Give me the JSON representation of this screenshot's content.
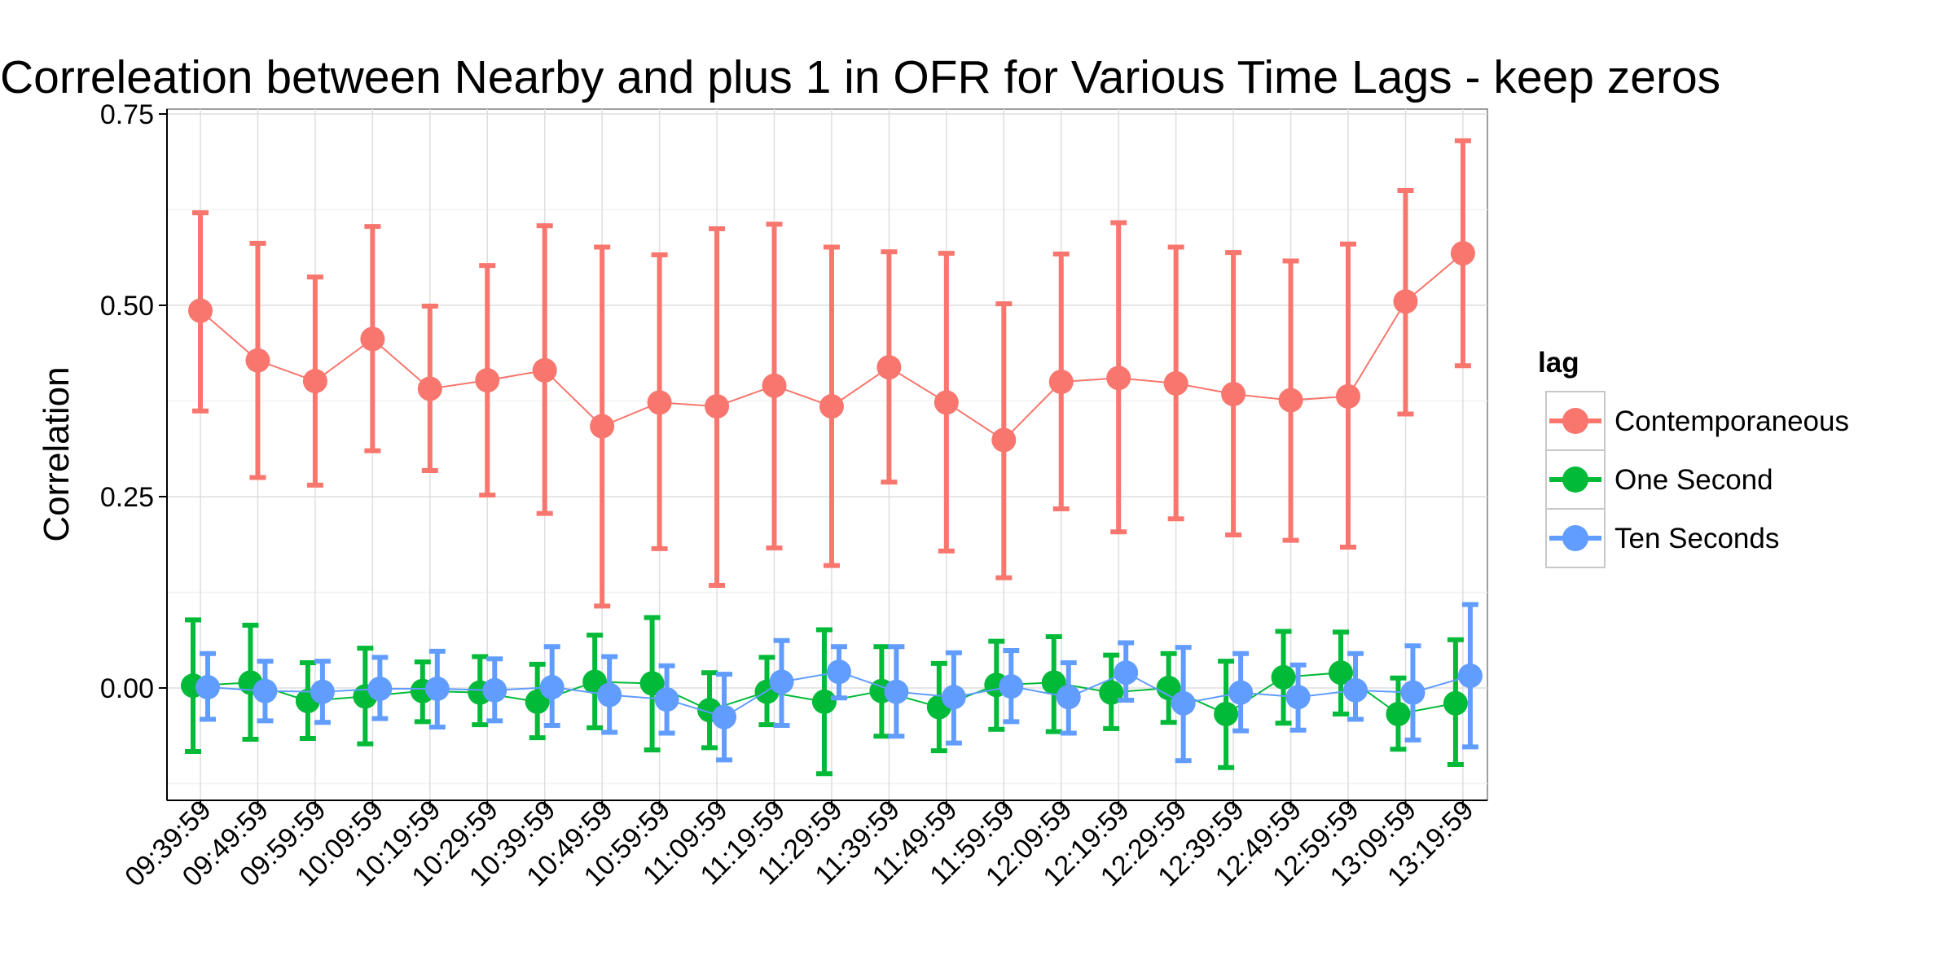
{
  "chart_data": {
    "type": "line",
    "title": "Correleation between Nearby and plus 1 in OFR for Various Time Lags - keep zeros",
    "xlabel": "",
    "ylabel": "Correlation",
    "categories": [
      "09:39:59",
      "09:49:59",
      "09:59:59",
      "10:09:59",
      "10:19:59",
      "10:29:59",
      "10:39:59",
      "10:49:59",
      "10:59:59",
      "11:09:59",
      "11:19:59",
      "11:29:59",
      "11:39:59",
      "11:49:59",
      "11:59:59",
      "12:09:59",
      "12:19:59",
      "12:29:59",
      "12:39:59",
      "12:49:59",
      "12:59:59",
      "13:09:59",
      "13:19:59"
    ],
    "y_ticks": [
      0.0,
      0.25,
      0.5,
      0.75
    ],
    "y_tick_labels": [
      "0.00",
      "0.25",
      "0.50",
      "0.75"
    ],
    "ylim": [
      -0.15,
      0.75
    ],
    "grid": true,
    "legend": {
      "title": "lag",
      "placement": "right"
    },
    "series": [
      {
        "name": "Contemporaneous",
        "color": "#F8766D",
        "values": [
          0.493,
          0.428,
          0.401,
          0.456,
          0.391,
          0.402,
          0.415,
          0.342,
          0.373,
          0.368,
          0.395,
          0.368,
          0.419,
          0.373,
          0.324,
          0.4,
          0.405,
          0.398,
          0.384,
          0.376,
          0.381,
          0.505,
          0.568
        ],
        "lower": [
          0.362,
          0.275,
          0.265,
          0.31,
          0.284,
          0.252,
          0.228,
          0.107,
          0.182,
          0.134,
          0.183,
          0.16,
          0.269,
          0.179,
          0.144,
          0.234,
          0.204,
          0.221,
          0.2,
          0.193,
          0.184,
          0.358,
          0.421
        ],
        "upper": [
          0.621,
          0.581,
          0.537,
          0.603,
          0.499,
          0.552,
          0.604,
          0.576,
          0.566,
          0.6,
          0.606,
          0.576,
          0.57,
          0.568,
          0.502,
          0.567,
          0.608,
          0.576,
          0.569,
          0.558,
          0.58,
          0.65,
          0.715
        ]
      },
      {
        "name": "One Second",
        "color": "#00BA38",
        "values": [
          0.003,
          0.007,
          -0.017,
          -0.011,
          -0.004,
          -0.006,
          -0.018,
          0.008,
          0.006,
          -0.029,
          -0.005,
          -0.018,
          -0.004,
          -0.025,
          0.004,
          0.007,
          -0.006,
          -0.0,
          -0.034,
          0.014,
          0.02,
          -0.034,
          -0.02
        ],
        "lower": [
          -0.083,
          -0.067,
          -0.066,
          -0.073,
          -0.044,
          -0.048,
          -0.065,
          -0.052,
          -0.081,
          -0.078,
          -0.048,
          -0.112,
          -0.063,
          -0.082,
          -0.054,
          -0.057,
          -0.053,
          -0.045,
          -0.104,
          -0.046,
          -0.034,
          -0.08,
          -0.1
        ],
        "upper": [
          0.089,
          0.082,
          0.033,
          0.052,
          0.034,
          0.041,
          0.031,
          0.069,
          0.092,
          0.02,
          0.04,
          0.076,
          0.054,
          0.032,
          0.061,
          0.067,
          0.043,
          0.045,
          0.035,
          0.074,
          0.073,
          0.013,
          0.063
        ]
      },
      {
        "name": "Ten Seconds",
        "color": "#619CFF",
        "values": [
          0.001,
          -0.004,
          -0.005,
          -0.001,
          -0.001,
          -0.003,
          0.001,
          -0.009,
          -0.015,
          -0.038,
          0.008,
          0.021,
          -0.005,
          -0.012,
          0.002,
          -0.012,
          0.02,
          -0.02,
          -0.006,
          -0.012,
          -0.003,
          -0.006,
          0.016
        ],
        "lower": [
          -0.041,
          -0.043,
          -0.045,
          -0.04,
          -0.051,
          -0.043,
          -0.049,
          -0.058,
          -0.059,
          -0.094,
          -0.049,
          -0.013,
          -0.063,
          -0.072,
          -0.044,
          -0.059,
          -0.016,
          -0.095,
          -0.056,
          -0.055,
          -0.041,
          -0.068,
          -0.077
        ],
        "upper": [
          0.045,
          0.035,
          0.035,
          0.04,
          0.048,
          0.038,
          0.054,
          0.041,
          0.029,
          0.018,
          0.062,
          0.054,
          0.054,
          0.046,
          0.049,
          0.033,
          0.059,
          0.053,
          0.045,
          0.03,
          0.045,
          0.055,
          0.109
        ]
      }
    ]
  }
}
